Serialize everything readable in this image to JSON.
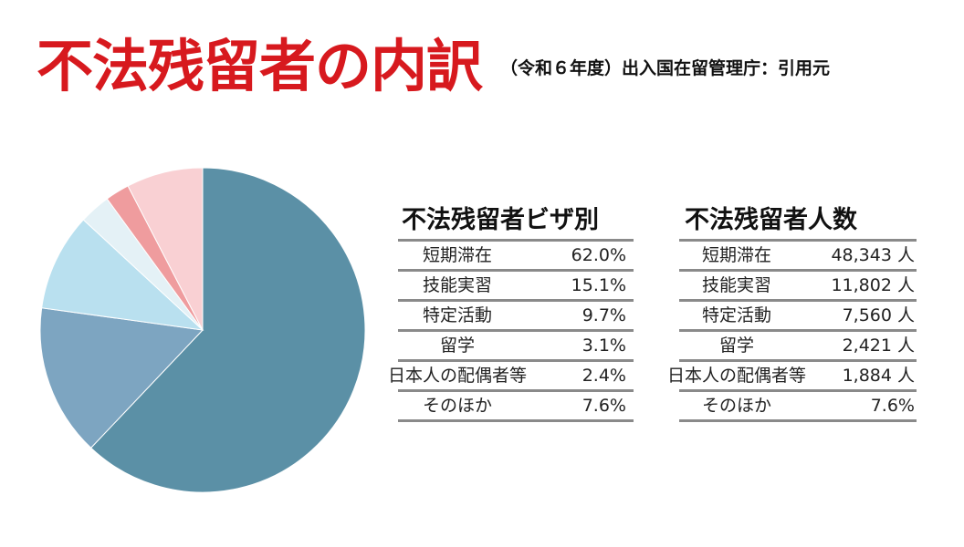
{
  "title": "不法残留者の内訳",
  "subtitle": "（令和６年度）出入国在留管理庁：引用元",
  "chart_data": {
    "type": "pie",
    "start": "top",
    "direction": "clockwise",
    "categories": [
      "短期滞在",
      "技能実習",
      "特定活動",
      "留学",
      "日本人の配偶者等",
      "そのほか"
    ],
    "values": [
      62.0,
      15.1,
      9.7,
      3.1,
      2.4,
      7.6
    ],
    "colors": [
      "#5b90a6",
      "#7da5c1",
      "#b9e0ef",
      "#e4f1f6",
      "#ef9c9e",
      "#f9d0d3"
    ]
  },
  "table_visa": {
    "heading": "不法残留者ビザ別",
    "rows": [
      {
        "label": "短期滞在",
        "value": "62.0%"
      },
      {
        "label": "技能実習",
        "value": "15.1%"
      },
      {
        "label": "特定活動",
        "value": "9.7%"
      },
      {
        "label": "留学",
        "value": "3.1%"
      },
      {
        "label": "日本人の配偶者等",
        "value": "2.4%"
      },
      {
        "label": "そのほか",
        "value": "7.6%"
      }
    ]
  },
  "table_count": {
    "heading": "不法残留者人数",
    "rows": [
      {
        "label": "短期滞在",
        "value": "48,343 人"
      },
      {
        "label": "技能実習",
        "value": "11,802 人"
      },
      {
        "label": "特定活動",
        "value": "7,560 人"
      },
      {
        "label": "留学",
        "value": "2,421 人"
      },
      {
        "label": "日本人の配偶者等",
        "value": "1,884 人"
      },
      {
        "label": "そのほか",
        "value": "7.6%"
      }
    ]
  }
}
